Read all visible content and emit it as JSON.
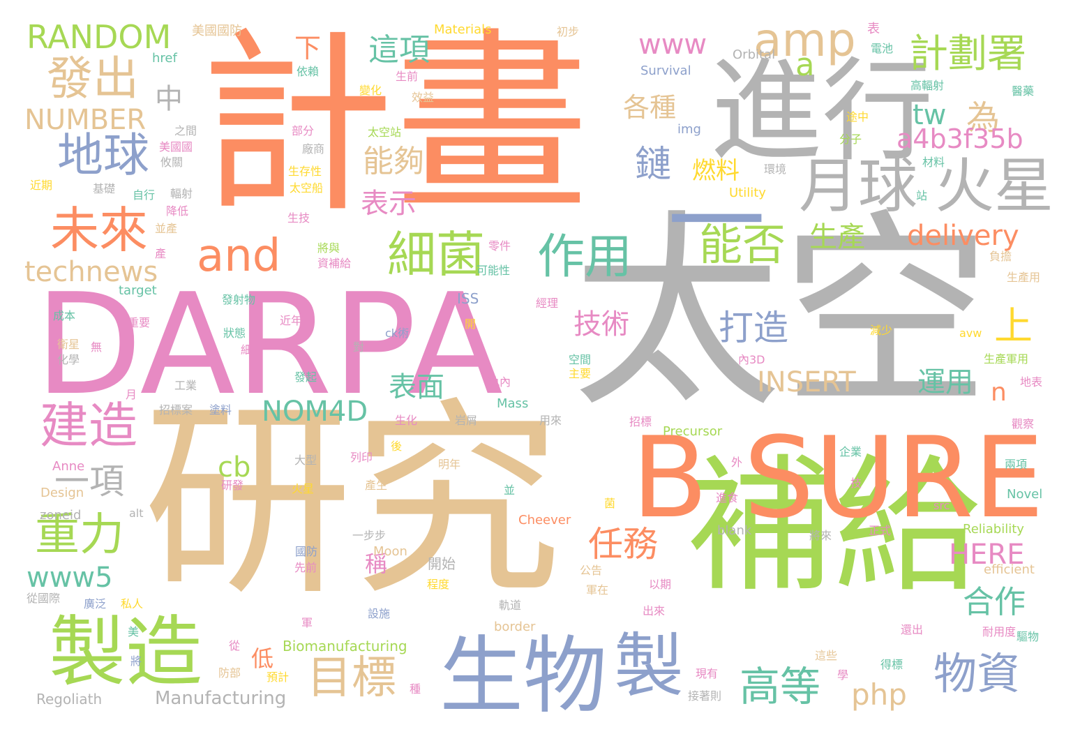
{
  "palette": {
    "orange": "#FC8D62",
    "pink": "#E78AC3",
    "grey": "#B3B3B3",
    "tan": "#E5C494",
    "green": "#A6D854",
    "blue": "#8DA0CB",
    "teal": "#66C2A5",
    "yellow": "#FFD92F"
  },
  "words": [
    {
      "text": "計畫",
      "color": "orange"
    },
    {
      "text": "太空",
      "color": "grey"
    },
    {
      "text": "研究",
      "color": "tan"
    },
    {
      "text": "DARPA",
      "color": "pink"
    },
    {
      "text": "進行",
      "color": "grey"
    },
    {
      "text": "補給",
      "color": "green"
    },
    {
      "text": "B SURE",
      "color": "orange"
    },
    {
      "text": "生物",
      "color": "blue"
    },
    {
      "text": "製造",
      "color": "green"
    },
    {
      "text": "製",
      "color": "blue"
    },
    {
      "text": "月球",
      "color": "grey"
    },
    {
      "text": "火星",
      "color": "grey"
    },
    {
      "text": "一",
      "color": "blue"
    },
    {
      "text": "細菌",
      "color": "green"
    },
    {
      "text": "未來",
      "color": "orange"
    },
    {
      "text": "地球",
      "color": "blue"
    },
    {
      "text": "發出",
      "color": "tan"
    },
    {
      "text": "建造",
      "color": "pink"
    },
    {
      "text": "作用",
      "color": "teal"
    },
    {
      "text": "能否",
      "color": "green"
    },
    {
      "text": "amp",
      "color": "tan"
    },
    {
      "text": "and",
      "color": "orange"
    },
    {
      "text": "計劃署",
      "color": "green"
    },
    {
      "text": "重力",
      "color": "green"
    },
    {
      "text": "目標",
      "color": "tan"
    },
    {
      "text": "物資",
      "color": "blue"
    },
    {
      "text": "高等",
      "color": "teal"
    },
    {
      "text": "一項",
      "color": "grey"
    },
    {
      "text": "RANDOM",
      "color": "green"
    },
    {
      "text": "www",
      "color": "pink"
    },
    {
      "text": "這項",
      "color": "teal"
    },
    {
      "text": "a",
      "color": "green"
    },
    {
      "text": "能夠",
      "color": "tan"
    },
    {
      "text": "為",
      "color": "tan"
    },
    {
      "text": "NUMBER",
      "color": "tan"
    },
    {
      "text": "中",
      "color": "grey"
    },
    {
      "text": "下",
      "color": "orange"
    },
    {
      "text": "各種",
      "color": "tan"
    },
    {
      "text": "tw",
      "color": "teal"
    },
    {
      "text": "a4b3f35b",
      "color": "pink"
    },
    {
      "text": "鏈",
      "color": "blue"
    },
    {
      "text": "燃料",
      "color": "yellow"
    },
    {
      "text": "表示",
      "color": "pink"
    },
    {
      "text": "生產",
      "color": "green"
    },
    {
      "text": "delivery",
      "color": "orange"
    },
    {
      "text": "technews",
      "color": "tan"
    },
    {
      "text": "打造",
      "color": "blue"
    },
    {
      "text": "技術",
      "color": "pink"
    },
    {
      "text": "上",
      "color": "yellow"
    },
    {
      "text": "INSERT",
      "color": "tan"
    },
    {
      "text": "表面",
      "color": "teal"
    },
    {
      "text": "運用",
      "color": "teal"
    },
    {
      "text": "n",
      "color": "orange"
    },
    {
      "text": "NOM4D",
      "color": "teal"
    },
    {
      "text": "cb",
      "color": "green"
    },
    {
      "text": "任務",
      "color": "orange"
    },
    {
      "text": "www5",
      "color": "teal"
    },
    {
      "text": "稱",
      "color": "pink"
    },
    {
      "text": "HERE",
      "color": "pink"
    },
    {
      "text": "合作",
      "color": "teal"
    },
    {
      "text": "低",
      "color": "orange"
    },
    {
      "text": "php",
      "color": "tan"
    },
    {
      "text": "Manufacturing",
      "color": "grey"
    },
    {
      "text": "Biomanufacturing",
      "color": "green"
    },
    {
      "text": "Regoliath",
      "color": "grey"
    },
    {
      "text": "美國國防",
      "color": "tan"
    },
    {
      "text": "Materials",
      "color": "yellow"
    },
    {
      "text": "初步",
      "color": "tan"
    },
    {
      "text": "表",
      "color": "pink"
    },
    {
      "text": "href",
      "color": "teal"
    },
    {
      "text": "依賴",
      "color": "teal"
    },
    {
      "text": "Orbital",
      "color": "grey"
    },
    {
      "text": "電池",
      "color": "teal"
    },
    {
      "text": "Survival",
      "color": "blue"
    },
    {
      "text": "生前",
      "color": "pink"
    },
    {
      "text": "高輻射",
      "color": "teal"
    },
    {
      "text": "醫藥",
      "color": "teal"
    },
    {
      "text": "變化",
      "color": "yellow"
    },
    {
      "text": "效益",
      "color": "tan"
    },
    {
      "text": "之間",
      "color": "grey"
    },
    {
      "text": "部分",
      "color": "pink"
    },
    {
      "text": "太空站",
      "color": "green"
    },
    {
      "text": "途中",
      "color": "yellow"
    },
    {
      "text": "img",
      "color": "blue"
    },
    {
      "text": "分子",
      "color": "green"
    },
    {
      "text": "美國國",
      "color": "pink"
    },
    {
      "text": "廠商",
      "color": "grey"
    },
    {
      "text": "攸關",
      "color": "grey"
    },
    {
      "text": "生存性",
      "color": "yellow"
    },
    {
      "text": "環境",
      "color": "grey"
    },
    {
      "text": "材料",
      "color": "teal"
    },
    {
      "text": "近期",
      "color": "yellow"
    },
    {
      "text": "基礎",
      "color": "grey"
    },
    {
      "text": "太空船",
      "color": "yellow"
    },
    {
      "text": "Utility",
      "color": "yellow"
    },
    {
      "text": "站",
      "color": "teal"
    },
    {
      "text": "自行",
      "color": "teal"
    },
    {
      "text": "輻射",
      "color": "grey"
    },
    {
      "text": "降低",
      "color": "pink"
    },
    {
      "text": "生技",
      "color": "pink"
    },
    {
      "text": "並產",
      "color": "tan"
    },
    {
      "text": "將與",
      "color": "green"
    },
    {
      "text": "零件",
      "color": "pink"
    },
    {
      "text": "產",
      "color": "pink"
    },
    {
      "text": "資補給",
      "color": "pink"
    },
    {
      "text": "可能性",
      "color": "teal"
    },
    {
      "text": "負擔",
      "color": "tan"
    },
    {
      "text": "生產用",
      "color": "tan"
    },
    {
      "text": "target",
      "color": "teal"
    },
    {
      "text": "發射物",
      "color": "teal"
    },
    {
      "text": "ISS",
      "color": "blue"
    },
    {
      "text": "經理",
      "color": "pink"
    },
    {
      "text": "成本",
      "color": "teal"
    },
    {
      "text": "重要",
      "color": "pink"
    },
    {
      "text": "近年",
      "color": "pink"
    },
    {
      "text": "開",
      "color": "yellow"
    },
    {
      "text": "減少",
      "color": "yellow"
    },
    {
      "text": "avw",
      "color": "yellow"
    },
    {
      "text": "衛星",
      "color": "tan"
    },
    {
      "text": "無",
      "color": "pink"
    },
    {
      "text": "狀態",
      "color": "teal"
    },
    {
      "text": "ck術",
      "color": "blue"
    },
    {
      "text": "化學",
      "color": "grey"
    },
    {
      "text": "細",
      "color": "pink"
    },
    {
      "text": "對",
      "color": "grey"
    },
    {
      "text": "空間",
      "color": "teal"
    },
    {
      "text": "內3D",
      "color": "pink"
    },
    {
      "text": "生產軍用",
      "color": "green"
    },
    {
      "text": "主要",
      "color": "yellow"
    },
    {
      "text": "工業",
      "color": "grey"
    },
    {
      "text": "發起",
      "color": "teal"
    },
    {
      "text": "軌內",
      "color": "pink"
    },
    {
      "text": "地表",
      "color": "pink"
    },
    {
      "text": "月",
      "color": "pink"
    },
    {
      "text": "Mass",
      "color": "teal"
    },
    {
      "text": "招標案",
      "color": "grey"
    },
    {
      "text": "塗料",
      "color": "blue"
    },
    {
      "text": "生化",
      "color": "pink"
    },
    {
      "text": "岩屑",
      "color": "grey"
    },
    {
      "text": "用來",
      "color": "grey"
    },
    {
      "text": "招標",
      "color": "pink"
    },
    {
      "text": "Precursor",
      "color": "green"
    },
    {
      "text": "觀察",
      "color": "pink"
    },
    {
      "text": "後",
      "color": "yellow"
    },
    {
      "text": "企業",
      "color": "teal"
    },
    {
      "text": "列印",
      "color": "pink"
    },
    {
      "text": "明年",
      "color": "tan"
    },
    {
      "text": "Anne",
      "color": "pink"
    },
    {
      "text": "大型",
      "color": "grey"
    },
    {
      "text": "研發",
      "color": "pink"
    },
    {
      "text": "產生",
      "color": "tan"
    },
    {
      "text": "外",
      "color": "pink"
    },
    {
      "text": "兩項",
      "color": "teal"
    },
    {
      "text": "Design",
      "color": "tan"
    },
    {
      "text": "火星",
      "color": "yellow"
    },
    {
      "text": "菌",
      "color": "yellow"
    },
    {
      "text": "技",
      "color": "pink"
    },
    {
      "text": "並",
      "color": "teal"
    },
    {
      "text": "進食",
      "color": "pink"
    },
    {
      "text": "Novel",
      "color": "teal"
    },
    {
      "text": "zoneid",
      "color": "grey"
    },
    {
      "text": "alt",
      "color": "grey"
    },
    {
      "text": "Cheever",
      "color": "orange"
    },
    {
      "text": "src",
      "color": "pink"
    },
    {
      "text": "blank",
      "color": "grey"
    },
    {
      "text": "Reliability",
      "color": "green"
    },
    {
      "text": "一步步",
      "color": "grey"
    },
    {
      "text": "將來",
      "color": "grey"
    },
    {
      "text": "正式",
      "color": "pink"
    },
    {
      "text": "國防",
      "color": "blue"
    },
    {
      "text": "Moon",
      "color": "tan"
    },
    {
      "text": "開始",
      "color": "grey"
    },
    {
      "text": "公告",
      "color": "tan"
    },
    {
      "text": "efficient",
      "color": "tan"
    },
    {
      "text": "先前",
      "color": "pink"
    },
    {
      "text": "程度",
      "color": "yellow"
    },
    {
      "text": "以期",
      "color": "pink"
    },
    {
      "text": "軍在",
      "color": "tan"
    },
    {
      "text": "從國際",
      "color": "grey"
    },
    {
      "text": "廣泛",
      "color": "blue"
    },
    {
      "text": "私人",
      "color": "yellow"
    },
    {
      "text": "設施",
      "color": "blue"
    },
    {
      "text": "軌道",
      "color": "grey"
    },
    {
      "text": "出來",
      "color": "pink"
    },
    {
      "text": "美",
      "color": "teal"
    },
    {
      "text": "border",
      "color": "tan"
    },
    {
      "text": "還出",
      "color": "pink"
    },
    {
      "text": "耐用度",
      "color": "pink"
    },
    {
      "text": "軍",
      "color": "pink"
    },
    {
      "text": "驅物",
      "color": "teal"
    },
    {
      "text": "從",
      "color": "pink"
    },
    {
      "text": "將",
      "color": "blue"
    },
    {
      "text": "防部",
      "color": "tan"
    },
    {
      "text": "預計",
      "color": "yellow"
    },
    {
      "text": "這些",
      "color": "tan"
    },
    {
      "text": "得標",
      "color": "teal"
    },
    {
      "text": "現有",
      "color": "pink"
    },
    {
      "text": "學",
      "color": "pink"
    },
    {
      "text": "種",
      "color": "pink"
    },
    {
      "text": "接著則",
      "color": "grey"
    }
  ]
}
